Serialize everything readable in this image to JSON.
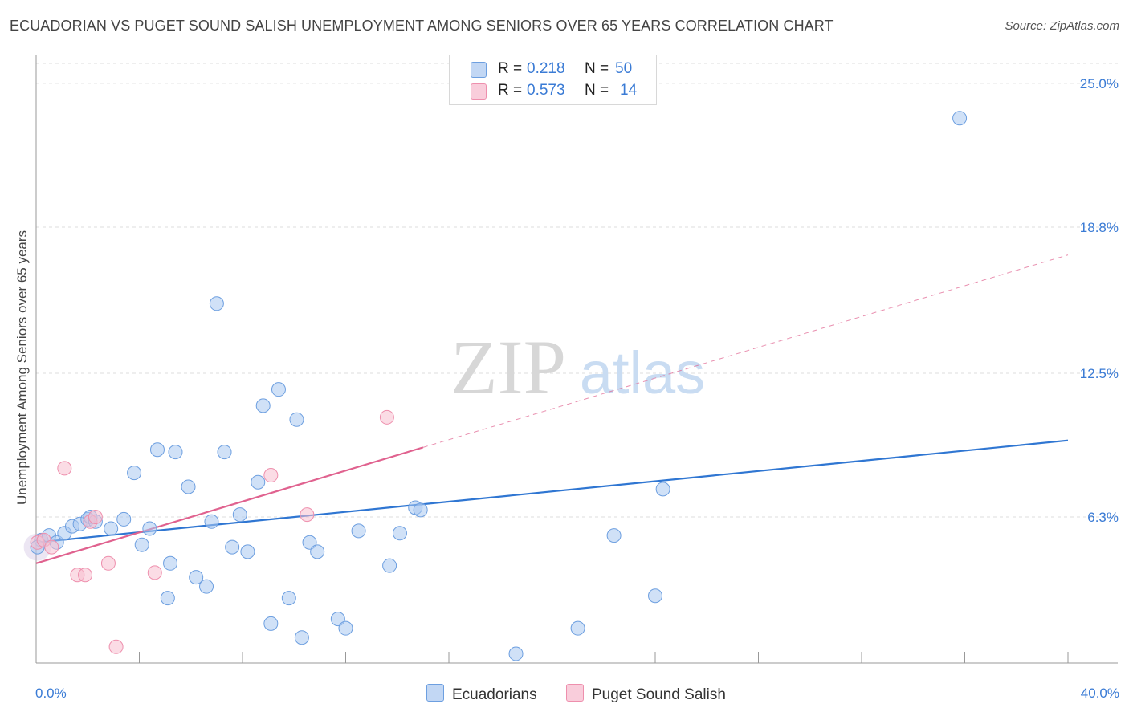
{
  "title": "ECUADORIAN VS PUGET SOUND SALISH UNEMPLOYMENT AMONG SENIORS OVER 65 YEARS CORRELATION CHART",
  "source": "Source: ZipAtlas.com",
  "watermark": {
    "zip": "ZIP",
    "atlas": "atlas"
  },
  "legend": {
    "rows": [
      {
        "r_label": "R =",
        "r_value": "0.218",
        "n_label": "N =",
        "n_value": "50"
      },
      {
        "r_label": "R =",
        "r_value": "0.573",
        "n_label": "N =",
        "n_value": "14"
      }
    ]
  },
  "colors": {
    "ecuadorians_fill": "#a9c8f0",
    "ecuadorians_stroke": "#6d9fe0",
    "ecuadorians_line": "#2f76d2",
    "salish_fill": "#f7bfd0",
    "salish_stroke": "#ee8fad",
    "salish_line": "#e0628f",
    "axis_value": "#3a7bd5"
  },
  "chart_data": {
    "type": "scatter",
    "title": "ECUADORIAN VS PUGET SOUND SALISH UNEMPLOYMENT AMONG SENIORS OVER 65 YEARS CORRELATION CHART",
    "xlabel": "",
    "ylabel": "Unemployment Among Seniors over 65 years",
    "xlim": [
      0,
      40
    ],
    "ylim": [
      0,
      26
    ],
    "x_tick_labels": [
      "0.0%",
      "40.0%"
    ],
    "y_ticks": [
      6.3,
      12.5,
      18.8,
      25.0
    ],
    "y_tick_labels": [
      "6.3%",
      "12.5%",
      "18.8%",
      "25.0%"
    ],
    "grid": true,
    "series": [
      {
        "name": "Ecuadorians",
        "r": 0.218,
        "n": 50,
        "trend": {
          "x0": 0,
          "y0": 5.2,
          "x1": 40,
          "y1": 9.6,
          "dashed_to": null
        },
        "points": [
          [
            0.2,
            5.3
          ],
          [
            0.5,
            5.5
          ],
          [
            0.8,
            5.2
          ],
          [
            1.1,
            5.6
          ],
          [
            1.4,
            5.9
          ],
          [
            1.7,
            6.0
          ],
          [
            2.0,
            6.2
          ],
          [
            2.1,
            6.3
          ],
          [
            2.3,
            6.1
          ],
          [
            2.9,
            5.8
          ],
          [
            3.4,
            6.2
          ],
          [
            3.8,
            8.2
          ],
          [
            4.1,
            5.1
          ],
          [
            4.4,
            5.8
          ],
          [
            4.7,
            9.2
          ],
          [
            5.1,
            2.8
          ],
          [
            5.2,
            4.3
          ],
          [
            5.4,
            9.1
          ],
          [
            5.9,
            7.6
          ],
          [
            6.2,
            3.7
          ],
          [
            6.6,
            3.3
          ],
          [
            6.8,
            6.1
          ],
          [
            7.0,
            15.5
          ],
          [
            7.3,
            9.1
          ],
          [
            7.6,
            5.0
          ],
          [
            7.9,
            6.4
          ],
          [
            8.2,
            4.8
          ],
          [
            8.6,
            7.8
          ],
          [
            8.8,
            11.1
          ],
          [
            9.1,
            1.7
          ],
          [
            9.4,
            11.8
          ],
          [
            9.8,
            2.8
          ],
          [
            10.1,
            10.5
          ],
          [
            10.3,
            1.1
          ],
          [
            10.6,
            5.2
          ],
          [
            10.9,
            4.8
          ],
          [
            11.7,
            1.9
          ],
          [
            12.0,
            1.5
          ],
          [
            12.5,
            5.7
          ],
          [
            13.7,
            4.2
          ],
          [
            14.1,
            5.6
          ],
          [
            14.7,
            6.7
          ],
          [
            14.9,
            6.6
          ],
          [
            18.6,
            0.4
          ],
          [
            21.0,
            1.5
          ],
          [
            22.4,
            5.5
          ],
          [
            24.0,
            2.9
          ],
          [
            24.3,
            7.5
          ],
          [
            35.8,
            23.5
          ],
          [
            0.05,
            5.0
          ]
        ]
      },
      {
        "name": "Puget Sound Salish",
        "r": 0.573,
        "n": 14,
        "trend": {
          "x0": 0,
          "y0": 4.3,
          "x1": 15.0,
          "y1": 9.3,
          "dashed_to": {
            "x": 40,
            "y": 17.6
          }
        },
        "points": [
          [
            0.05,
            5.2
          ],
          [
            0.3,
            5.3
          ],
          [
            0.6,
            5.0
          ],
          [
            1.1,
            8.4
          ],
          [
            1.6,
            3.8
          ],
          [
            1.9,
            3.8
          ],
          [
            2.1,
            6.1
          ],
          [
            2.3,
            6.3
          ],
          [
            2.8,
            4.3
          ],
          [
            3.1,
            0.7
          ],
          [
            4.6,
            3.9
          ],
          [
            9.1,
            8.1
          ],
          [
            10.5,
            6.4
          ],
          [
            13.6,
            10.6
          ]
        ]
      }
    ]
  },
  "bottom_legend": {
    "items": [
      "Ecuadorians",
      "Puget Sound Salish"
    ]
  }
}
